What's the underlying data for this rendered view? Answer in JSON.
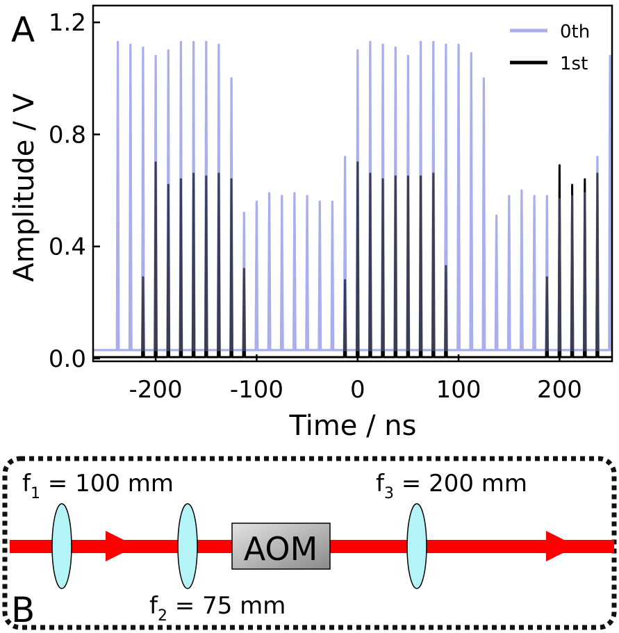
{
  "panel_a": {
    "label": "A",
    "chart_data": {
      "type": "line",
      "xlabel": "Time / ns",
      "ylabel": "Amplitude / V",
      "xlim": [
        -262,
        252
      ],
      "ylim": [
        -0.01,
        1.26
      ],
      "xticks": [
        -200,
        -100,
        0,
        100,
        200
      ],
      "xtick_labels": [
        "-200",
        "-100",
        "0",
        "100",
        "200"
      ],
      "yticks": [
        0.0,
        0.4,
        0.8,
        1.2
      ],
      "ytick_labels": [
        "0.0",
        "0.4",
        "0.8",
        "1.2"
      ],
      "grid": false,
      "legend_position": "top-right",
      "pulse_period_ns": 12.5,
      "series": [
        {
          "name": "0th",
          "color": "#aab0ee",
          "baseline": 0.03,
          "peaks": [
            {
              "t": -237.5,
              "a": 1.13
            },
            {
              "t": -225,
              "a": 1.12
            },
            {
              "t": -212.5,
              "a": 1.11
            },
            {
              "t": -200,
              "a": 1.08
            },
            {
              "t": -187.5,
              "a": 1.1
            },
            {
              "t": -175,
              "a": 1.13
            },
            {
              "t": -162.5,
              "a": 1.13
            },
            {
              "t": -150,
              "a": 1.13
            },
            {
              "t": -137.5,
              "a": 1.12
            },
            {
              "t": -125,
              "a": 1.0
            },
            {
              "t": -112.5,
              "a": 0.52
            },
            {
              "t": -100,
              "a": 0.56
            },
            {
              "t": -87.5,
              "a": 0.59
            },
            {
              "t": -75,
              "a": 0.58
            },
            {
              "t": -62.5,
              "a": 0.59
            },
            {
              "t": -50,
              "a": 0.58
            },
            {
              "t": -37.5,
              "a": 0.56
            },
            {
              "t": -25,
              "a": 0.56
            },
            {
              "t": -12.5,
              "a": 0.72
            },
            {
              "t": 0,
              "a": 1.1
            },
            {
              "t": 12.5,
              "a": 1.13
            },
            {
              "t": 25,
              "a": 1.12
            },
            {
              "t": 37.5,
              "a": 1.11
            },
            {
              "t": 50,
              "a": 1.08
            },
            {
              "t": 62.5,
              "a": 1.13
            },
            {
              "t": 75,
              "a": 1.13
            },
            {
              "t": 87.5,
              "a": 1.12
            },
            {
              "t": 100,
              "a": 1.12
            },
            {
              "t": 112.5,
              "a": 1.09
            },
            {
              "t": 125,
              "a": 1.0
            },
            {
              "t": 137.5,
              "a": 0.51
            },
            {
              "t": 150,
              "a": 0.58
            },
            {
              "t": 162.5,
              "a": 0.6
            },
            {
              "t": 175,
              "a": 0.58
            },
            {
              "t": 187.5,
              "a": 0.58
            },
            {
              "t": 200,
              "a": 0.57
            },
            {
              "t": 212.5,
              "a": 0.58
            },
            {
              "t": 225,
              "a": 0.59
            },
            {
              "t": 237.5,
              "a": 0.72
            },
            {
              "t": 250,
              "a": 1.08
            }
          ]
        },
        {
          "name": "1st",
          "color": "#000000",
          "baseline": 0.005,
          "peaks": [
            {
              "t": -212.5,
              "a": 0.29
            },
            {
              "t": -200,
              "a": 0.7
            },
            {
              "t": -187.5,
              "a": 0.62
            },
            {
              "t": -175,
              "a": 0.64
            },
            {
              "t": -162.5,
              "a": 0.66
            },
            {
              "t": -150,
              "a": 0.65
            },
            {
              "t": -137.5,
              "a": 0.66
            },
            {
              "t": -125,
              "a": 0.64
            },
            {
              "t": -112.5,
              "a": 0.32
            },
            {
              "t": -12.5,
              "a": 0.28
            },
            {
              "t": 0,
              "a": 0.7
            },
            {
              "t": 12.5,
              "a": 0.66
            },
            {
              "t": 25,
              "a": 0.64
            },
            {
              "t": 37.5,
              "a": 0.65
            },
            {
              "t": 50,
              "a": 0.65
            },
            {
              "t": 62.5,
              "a": 0.65
            },
            {
              "t": 75,
              "a": 0.66
            },
            {
              "t": 87.5,
              "a": 0.33
            },
            {
              "t": 187.5,
              "a": 0.29
            },
            {
              "t": 200,
              "a": 0.69
            },
            {
              "t": 212.5,
              "a": 0.62
            },
            {
              "t": 225,
              "a": 0.64
            },
            {
              "t": 237.5,
              "a": 0.66
            }
          ]
        }
      ]
    }
  },
  "panel_b": {
    "label": "B",
    "lens1_label": {
      "base": "f",
      "sub": "1",
      "rest": " = 100 mm"
    },
    "lens2_label": {
      "base": "f",
      "sub": "2",
      "rest": " = 75 mm"
    },
    "lens3_label": {
      "base": "f",
      "sub": "3",
      "rest": " = 200 mm"
    },
    "aom_label": "AOM",
    "beam_color": "#ff0000",
    "lens_color": "#b4f4f6",
    "border_color": "#111111"
  }
}
